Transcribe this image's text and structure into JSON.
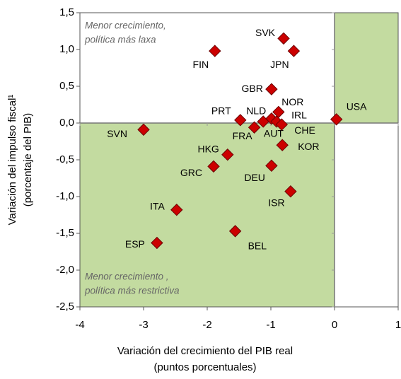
{
  "chart_data": {
    "type": "scatter",
    "x_label": [
      "Variación del crecimiento del PIB real",
      "(puntos porcentuales)"
    ],
    "y_label": [
      "Variación del impulso fiscal¹",
      "(porcentaje del PIB)"
    ],
    "annotations": [
      [
        "Menor crecimiento,",
        "política más laxa"
      ],
      [
        "Menor crecimiento ,",
        "política más restrictiva"
      ]
    ],
    "marker_color": "#cc0000",
    "shade_color": "#c3dba0",
    "xlim": [
      -4,
      1
    ],
    "xticks": [
      -4,
      -3,
      -2,
      -1,
      0,
      1
    ],
    "ylim": [
      -2.5,
      1.5
    ],
    "yticks": [
      {
        "value": -2.5,
        "label": "-2,5"
      },
      {
        "value": -2,
        "label": "-2,0"
      },
      {
        "value": -1.5,
        "label": "-1,5"
      },
      {
        "value": -1,
        "label": "-1,0"
      },
      {
        "value": -0.5,
        "label": "-0,5"
      },
      {
        "value": 0,
        "label": "0,0"
      },
      {
        "value": 0.5,
        "label": "0,5"
      },
      {
        "value": 1,
        "label": "1,0"
      },
      {
        "value": 1.5,
        "label": "1,5"
      }
    ],
    "points": [
      {
        "label": "SVK",
        "x": -0.8,
        "y": 1.15
      },
      {
        "label": "JPN",
        "x": -0.64,
        "y": 0.98
      },
      {
        "label": "FIN",
        "x": -1.88,
        "y": 0.98
      },
      {
        "label": "GBR",
        "x": -0.99,
        "y": 0.46
      },
      {
        "label": "NOR",
        "x": -0.88,
        "y": 0.15
      },
      {
        "label": "PRT",
        "x": -1.48,
        "y": 0.04
      },
      {
        "label": "FRA",
        "x": -1.26,
        "y": -0.06
      },
      {
        "label": "NLD",
        "x": -1.12,
        "y": 0.02
      },
      {
        "label": "AUT",
        "x": -0.99,
        "y": 0.06
      },
      {
        "label": "IRL",
        "x": -0.91,
        "y": 0.02
      },
      {
        "label": "CHE",
        "x": -0.83,
        "y": -0.02
      },
      {
        "label": "KOR",
        "x": -0.82,
        "y": -0.3
      },
      {
        "label": "USA",
        "x": 0.03,
        "y": 0.05
      },
      {
        "label": "SVN",
        "x": -3.0,
        "y": -0.09
      },
      {
        "label": "HKG",
        "x": -1.68,
        "y": -0.43
      },
      {
        "label": "GRC",
        "x": -1.9,
        "y": -0.59
      },
      {
        "label": "DEU",
        "x": -0.99,
        "y": -0.58
      },
      {
        "label": "ISR",
        "x": -0.69,
        "y": -0.93
      },
      {
        "label": "ITA",
        "x": -2.48,
        "y": -1.18
      },
      {
        "label": "ESP",
        "x": -2.79,
        "y": -1.63
      },
      {
        "label": "BEL",
        "x": -1.56,
        "y": -1.47
      }
    ]
  }
}
